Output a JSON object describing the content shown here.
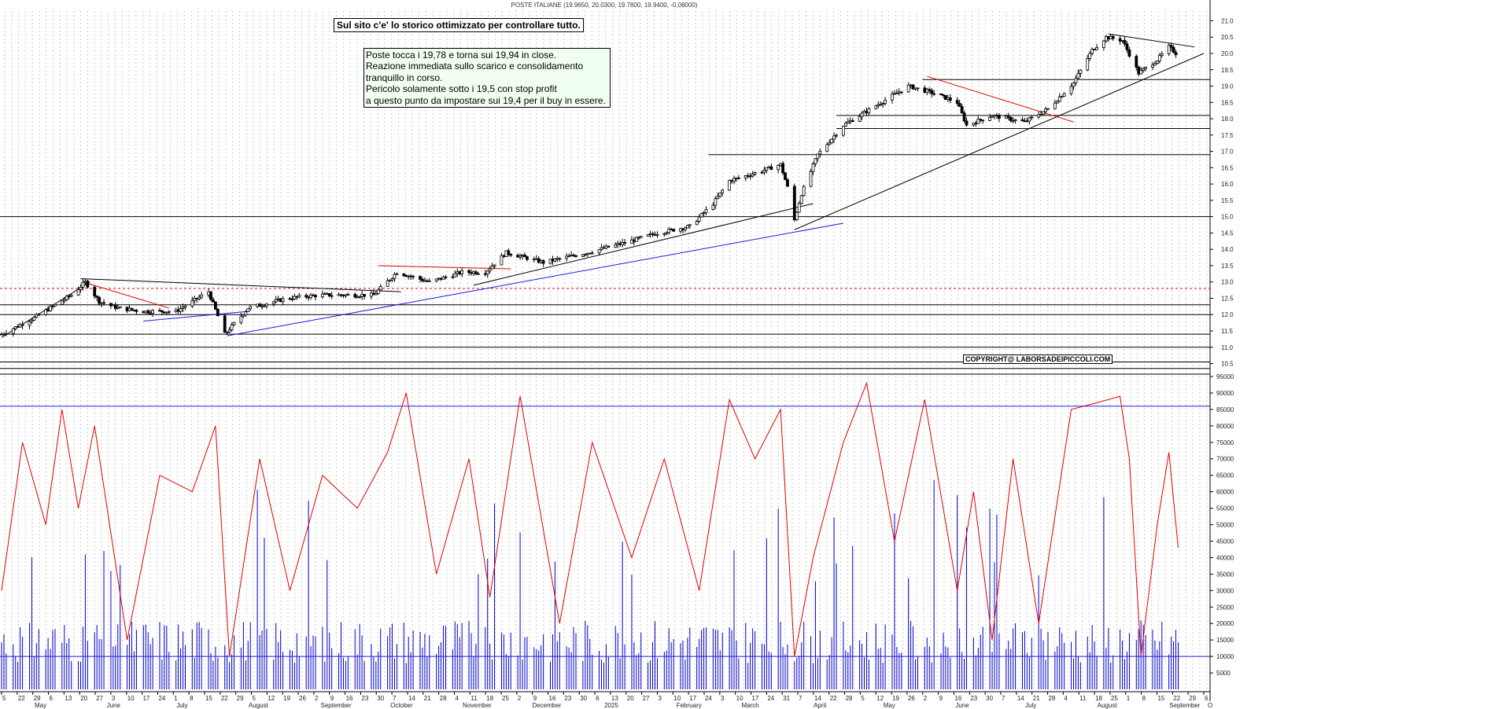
{
  "chart_title": "POSTE ITALIANE (19.9650, 20.0300, 19.7800, 19.9400, -0.08000)",
  "banner": "Sul sito c'e' lo storico ottimizzato per controllare tutto.",
  "note": {
    "line1": "Poste tocca i 19,78 e torna sui 19,94 in close.",
    "line2": "Reazione immediata sullo scarico e consolidamento",
    "line3": "tranquillo in corso.",
    "line4": "Pericolo solamente sotto i 19,5 con stop profit",
    "line5": "a questo punto da impostare sui 19,4 per il buy in essere."
  },
  "copyright": "COPYRIGHT@ LABORSADEIPICCOLI.COM",
  "colors": {
    "candles": "#000000",
    "volume": "#0000cc",
    "oscillator": "#e00000",
    "trend_red": "#e00000",
    "trend_blue": "#1a1add"
  },
  "chart_data": [
    {
      "type": "candlestick",
      "title": "POSTE ITALIANE (19.9650, 20.0300, 19.7800, 19.9400, -0.08000)",
      "x_range": [
        "2024-05-01",
        "2025-09-30"
      ],
      "ylim": [
        10.2,
        21.3
      ],
      "y_ticks": [
        10.5,
        11.0,
        11.5,
        12.0,
        12.5,
        13.0,
        13.5,
        14.0,
        14.5,
        15.0,
        15.5,
        16.0,
        16.5,
        17.0,
        17.5,
        18.0,
        18.5,
        19.0,
        19.5,
        20.0,
        20.5,
        21.0
      ],
      "close_path": [
        [
          "2024-05-01",
          11.4
        ],
        [
          "2024-05-15",
          11.9
        ],
        [
          "2024-05-31",
          12.6
        ],
        [
          "2024-06-06",
          13.0
        ],
        [
          "2024-06-12",
          12.4
        ],
        [
          "2024-06-20",
          12.2
        ],
        [
          "2024-07-01",
          12.1
        ],
        [
          "2024-07-15",
          12.1
        ],
        [
          "2024-07-29",
          12.7
        ],
        [
          "2024-08-05",
          11.4
        ],
        [
          "2024-08-15",
          12.2
        ],
        [
          "2024-09-01",
          12.5
        ],
        [
          "2024-09-15",
          12.6
        ],
        [
          "2024-10-01",
          12.6
        ],
        [
          "2024-10-08",
          12.6
        ],
        [
          "2024-10-18",
          13.3
        ],
        [
          "2024-11-01",
          13.0
        ],
        [
          "2024-11-15",
          13.3
        ],
        [
          "2024-11-25",
          13.3
        ],
        [
          "2024-12-04",
          13.9
        ],
        [
          "2024-12-20",
          13.6
        ],
        [
          "2025-01-08",
          13.9
        ],
        [
          "2025-01-24",
          14.2
        ],
        [
          "2025-02-07",
          14.5
        ],
        [
          "2025-02-21",
          14.7
        ],
        [
          "2025-03-03",
          15.4
        ],
        [
          "2025-03-10",
          16.1
        ],
        [
          "2025-03-24",
          16.4
        ],
        [
          "2025-04-01",
          16.6
        ],
        [
          "2025-04-04",
          15.9
        ],
        [
          "2025-04-07",
          14.9
        ],
        [
          "2025-04-10",
          15.7
        ],
        [
          "2025-04-17",
          16.9
        ],
        [
          "2025-04-28",
          17.8
        ],
        [
          "2025-05-12",
          18.4
        ],
        [
          "2025-05-26",
          19.0
        ],
        [
          "2025-06-05",
          18.8
        ],
        [
          "2025-06-16",
          18.5
        ],
        [
          "2025-06-20",
          17.8
        ],
        [
          "2025-07-01",
          18.1
        ],
        [
          "2025-07-15",
          17.9
        ],
        [
          "2025-07-25",
          18.3
        ],
        [
          "2025-08-05",
          19.1
        ],
        [
          "2025-08-13",
          20.1
        ],
        [
          "2025-08-19",
          20.5
        ],
        [
          "2025-08-26",
          20.4
        ],
        [
          "2025-09-02",
          19.4
        ],
        [
          "2025-09-10",
          19.8
        ],
        [
          "2025-09-15",
          20.2
        ],
        [
          "2025-09-19",
          19.94
        ]
      ],
      "horizontal_levels": [
        10.35,
        10.55,
        11.0,
        11.4,
        12.0,
        12.3,
        12.8,
        15.0,
        16.9,
        17.7,
        18.1,
        19.2
      ]
    },
    {
      "type": "bar",
      "series": [
        {
          "name": "",
          "kind": "volume bars"
        },
        {
          "name": "",
          "kind": "oscillator line"
        }
      ],
      "ylim": [
        0,
        95000
      ],
      "y_ticks": [
        5000,
        10000,
        15000,
        20000,
        25000,
        30000,
        35000,
        40000,
        45000,
        50000,
        55000,
        60000,
        65000,
        70000,
        75000,
        80000,
        85000,
        90000,
        95000
      ],
      "reference_levels": [
        86000,
        10000
      ],
      "oscillator_path": [
        [
          "2024-05-01",
          30000
        ],
        [
          "2024-05-10",
          75000
        ],
        [
          "2024-05-20",
          50000
        ],
        [
          "2024-05-27",
          85000
        ],
        [
          "2024-06-03",
          55000
        ],
        [
          "2024-06-10",
          80000
        ],
        [
          "2024-06-24",
          15000
        ],
        [
          "2024-07-08",
          65000
        ],
        [
          "2024-07-22",
          60000
        ],
        [
          "2024-08-01",
          80000
        ],
        [
          "2024-08-07",
          10000
        ],
        [
          "2024-08-20",
          70000
        ],
        [
          "2024-09-02",
          30000
        ],
        [
          "2024-09-16",
          65000
        ],
        [
          "2024-10-01",
          55000
        ],
        [
          "2024-10-14",
          72000
        ],
        [
          "2024-10-22",
          90000
        ],
        [
          "2024-11-04",
          35000
        ],
        [
          "2024-11-18",
          70000
        ],
        [
          "2024-11-27",
          28000
        ],
        [
          "2024-12-10",
          89000
        ],
        [
          "2024-12-27",
          20000
        ],
        [
          "2025-01-10",
          75000
        ],
        [
          "2025-01-27",
          40000
        ],
        [
          "2025-02-10",
          70000
        ],
        [
          "2025-02-25",
          30000
        ],
        [
          "2025-03-10",
          88000
        ],
        [
          "2025-03-21",
          70000
        ],
        [
          "2025-04-01",
          85000
        ],
        [
          "2025-04-07",
          10000
        ],
        [
          "2025-04-15",
          40000
        ],
        [
          "2025-04-28",
          75000
        ],
        [
          "2025-05-08",
          93000
        ],
        [
          "2025-05-20",
          45000
        ],
        [
          "2025-06-02",
          88000
        ],
        [
          "2025-06-16",
          30000
        ],
        [
          "2025-06-23",
          60000
        ],
        [
          "2025-07-01",
          15000
        ],
        [
          "2025-07-10",
          70000
        ],
        [
          "2025-07-21",
          20000
        ],
        [
          "2025-08-04",
          85000
        ],
        [
          "2025-08-15",
          87000
        ],
        [
          "2025-08-25",
          89000
        ],
        [
          "2025-08-29",
          70000
        ],
        [
          "2025-09-03",
          10000
        ],
        [
          "2025-09-10",
          50000
        ],
        [
          "2025-09-15",
          72000
        ],
        [
          "2025-09-19",
          43000
        ]
      ]
    }
  ],
  "x_axis": {
    "days": [
      "5",
      "22",
      "29",
      "6",
      "13",
      "20",
      "27",
      "3",
      "10",
      "17",
      "24",
      "1",
      "8",
      "15",
      "22",
      "29",
      "5",
      "12",
      "19",
      "26",
      "2",
      "9",
      "16",
      "23",
      "30",
      "7",
      "14",
      "21",
      "28",
      "4",
      "11",
      "18",
      "25",
      "2",
      "9",
      "16",
      "23",
      "30",
      "6",
      "13",
      "20",
      "27",
      "3",
      "10",
      "17",
      "24",
      "3",
      "10",
      "17",
      "24",
      "31",
      "7",
      "14",
      "22",
      "28",
      "5",
      "12",
      "19",
      "26",
      "2",
      "9",
      "16",
      "23",
      "30",
      "7",
      "14",
      "21",
      "28",
      "4",
      "11",
      "18",
      "25",
      "1",
      "8",
      "15",
      "22",
      "29",
      "6"
    ],
    "months": [
      "May",
      "June",
      "July",
      "August",
      "September",
      "October",
      "November",
      "December",
      "2025",
      "February",
      "March",
      "April",
      "May",
      "June",
      "July",
      "August",
      "September"
    ],
    "end_label": "O"
  }
}
